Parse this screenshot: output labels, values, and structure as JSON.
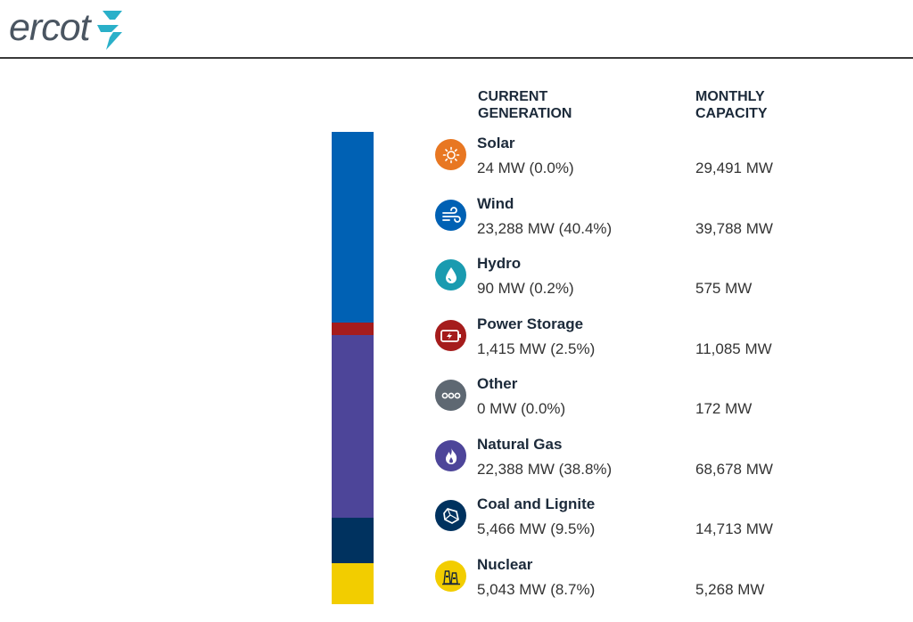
{
  "brand": {
    "logo_text": "ercot"
  },
  "columns": {
    "generation": "CURRENT\nGENERATION",
    "capacity": "MONTHLY\nCAPACITY"
  },
  "sources": [
    {
      "name": "Solar",
      "generation": "24 MW (0.0%)",
      "capacity": "29,491 MW",
      "icon": "sun-icon",
      "color": "#e87722",
      "share": 0.0
    },
    {
      "name": "Wind",
      "generation": "23,288 MW (40.4%)",
      "capacity": "39,788 MW",
      "icon": "wind-icon",
      "color": "#0061b4",
      "share": 40.4
    },
    {
      "name": "Hydro",
      "generation": "90 MW (0.2%)",
      "capacity": "575 MW",
      "icon": "water-drop-icon",
      "color": "#1a9bb0",
      "share": 0.2
    },
    {
      "name": "Power Storage",
      "generation": "1,415 MW (2.5%)",
      "capacity": "11,085 MW",
      "icon": "battery-icon",
      "color": "#a51c1c",
      "share": 2.5
    },
    {
      "name": "Other",
      "generation": "0 MW (0.0%)",
      "capacity": "172 MW",
      "icon": "ellipsis-icon",
      "color": "#5e6872",
      "share": 0.0
    },
    {
      "name": "Natural Gas",
      "generation": "22,388 MW (38.8%)",
      "capacity": "68,678 MW",
      "icon": "flame-icon",
      "color": "#4d4599",
      "share": 38.8
    },
    {
      "name": "Coal and Lignite",
      "generation": "5,466 MW (9.5%)",
      "capacity": "14,713 MW",
      "icon": "coal-icon",
      "color": "#00325f",
      "share": 9.5
    },
    {
      "name": "Nuclear",
      "generation": "5,043 MW (8.7%)",
      "capacity": "5,268 MW",
      "icon": "nuclear-plant-icon",
      "color": "#f2cd00",
      "share": 8.7
    }
  ]
}
